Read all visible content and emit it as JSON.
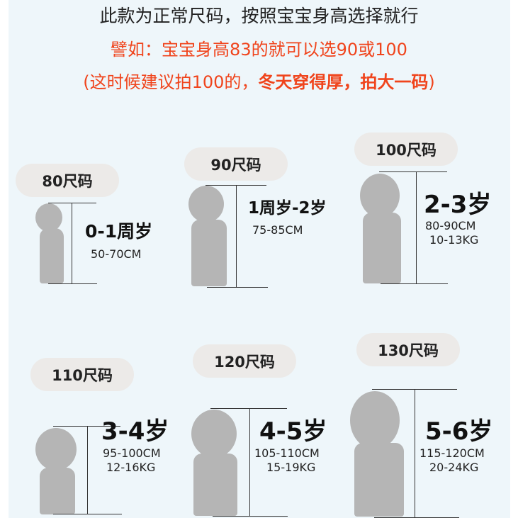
{
  "header": {
    "line1": "此款为正常尺码，按照宝宝身高选择就行",
    "line2": "譬如：宝宝身高83的就可以选90或100",
    "line3_normal": "(这时候建议拍100的，",
    "line3_bold": "冬天穿得厚，拍大一码",
    "line3_end": ")"
  },
  "colors": {
    "accent": "#f0441c",
    "silhouette": "#b5b5b5",
    "panel": "#eef6fa"
  },
  "sizes": [
    {
      "size": "80尺码",
      "age": "0-1周岁",
      "height": "50-70CM",
      "weight": ""
    },
    {
      "size": "90尺码",
      "age": "1周岁-2岁",
      "height": "75-85CM",
      "weight": ""
    },
    {
      "size": "100尺码",
      "age": "2-3岁",
      "height": "80-90CM",
      "weight": "10-13KG"
    },
    {
      "size": "110尺码",
      "age": "3-4岁",
      "height": "95-100CM",
      "weight": "12-16KG"
    },
    {
      "size": "120尺码",
      "age": "4-5岁",
      "height": "105-110CM",
      "weight": "15-19KG"
    },
    {
      "size": "130尺码",
      "age": "5-6岁",
      "height": "115-120CM",
      "weight": "20-24KG"
    }
  ]
}
